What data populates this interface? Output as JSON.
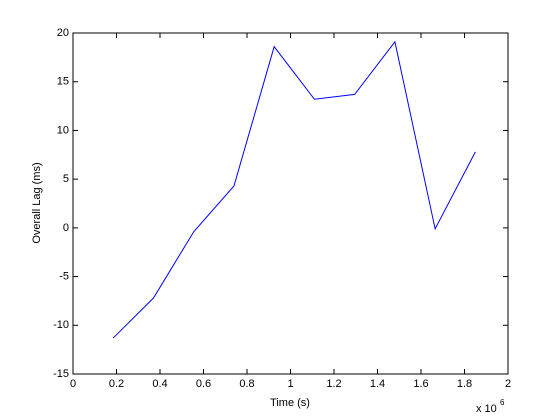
{
  "chart_data": {
    "type": "line",
    "x_label": "Time (s)",
    "y_label": "Overall Lag (ms)",
    "x_multiplier": "x 10",
    "x_multiplier_exponent": "6",
    "x": [
      0.185,
      0.37,
      0.555,
      0.74,
      0.925,
      1.11,
      1.295,
      1.48,
      1.665,
      1.85
    ],
    "series": [
      {
        "color": "#0000ff",
        "values": [
          -11.3,
          -7.2,
          -0.4,
          4.3,
          18.6,
          13.2,
          13.7,
          19.1,
          -0.1,
          7.8
        ]
      }
    ],
    "xlim": [
      0,
      2
    ],
    "xticks": [
      0,
      0.2,
      0.4,
      0.6,
      0.8,
      1,
      1.2,
      1.4,
      1.6,
      1.8,
      2
    ],
    "ylim": [
      -15,
      20
    ],
    "yticks": [
      -15,
      -10,
      -5,
      0,
      5,
      10,
      15,
      20
    ],
    "grid": false
  }
}
